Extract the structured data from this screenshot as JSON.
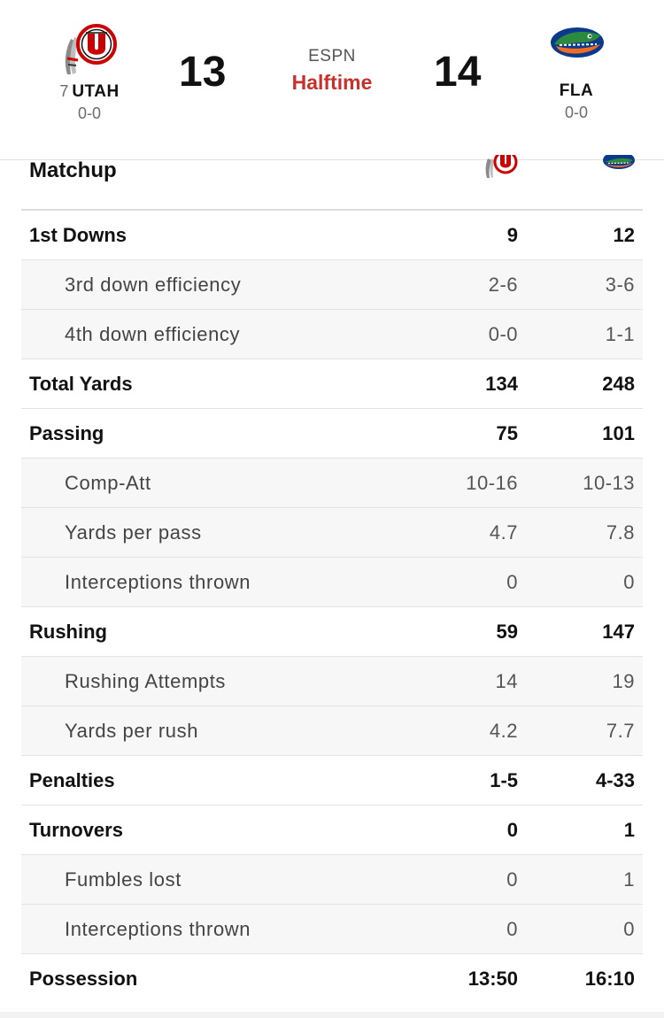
{
  "header": {
    "away": {
      "rank": "7",
      "abbr": "UTAH",
      "record": "0-0",
      "score": "13",
      "logo_icon": "utah-utes-logo-icon"
    },
    "home": {
      "abbr": "FLA",
      "record": "0-0",
      "score": "14",
      "logo_icon": "florida-gator-logo-icon"
    },
    "network": "ESPN",
    "period": "Halftime",
    "colors": {
      "status": "#c8312b",
      "utah_red": "#cc0000",
      "gator_blue": "#0b3a8c",
      "gator_orange": "#f26d22",
      "gator_green": "#2b8a3e"
    }
  },
  "matchup": {
    "title": "Matchup",
    "rows": [
      {
        "label": "1st Downs",
        "away": "9",
        "home": "12",
        "type": "main"
      },
      {
        "label": "3rd down efficiency",
        "away": "2-6",
        "home": "3-6",
        "type": "sub"
      },
      {
        "label": "4th down efficiency",
        "away": "0-0",
        "home": "1-1",
        "type": "sub"
      },
      {
        "label": "Total Yards",
        "away": "134",
        "home": "248",
        "type": "main"
      },
      {
        "label": "Passing",
        "away": "75",
        "home": "101",
        "type": "main"
      },
      {
        "label": "Comp-Att",
        "away": "10-16",
        "home": "10-13",
        "type": "sub"
      },
      {
        "label": "Yards per pass",
        "away": "4.7",
        "home": "7.8",
        "type": "sub"
      },
      {
        "label": "Interceptions thrown",
        "away": "0",
        "home": "0",
        "type": "sub"
      },
      {
        "label": "Rushing",
        "away": "59",
        "home": "147",
        "type": "main"
      },
      {
        "label": "Rushing Attempts",
        "away": "14",
        "home": "19",
        "type": "sub"
      },
      {
        "label": "Yards per rush",
        "away": "4.2",
        "home": "7.7",
        "type": "sub"
      },
      {
        "label": "Penalties",
        "away": "1-5",
        "home": "4-33",
        "type": "main"
      },
      {
        "label": "Turnovers",
        "away": "0",
        "home": "1",
        "type": "main"
      },
      {
        "label": "Fumbles lost",
        "away": "0",
        "home": "1",
        "type": "sub"
      },
      {
        "label": "Interceptions thrown",
        "away": "0",
        "home": "0",
        "type": "sub"
      },
      {
        "label": "Possession",
        "away": "13:50",
        "home": "16:10",
        "type": "main"
      }
    ]
  }
}
